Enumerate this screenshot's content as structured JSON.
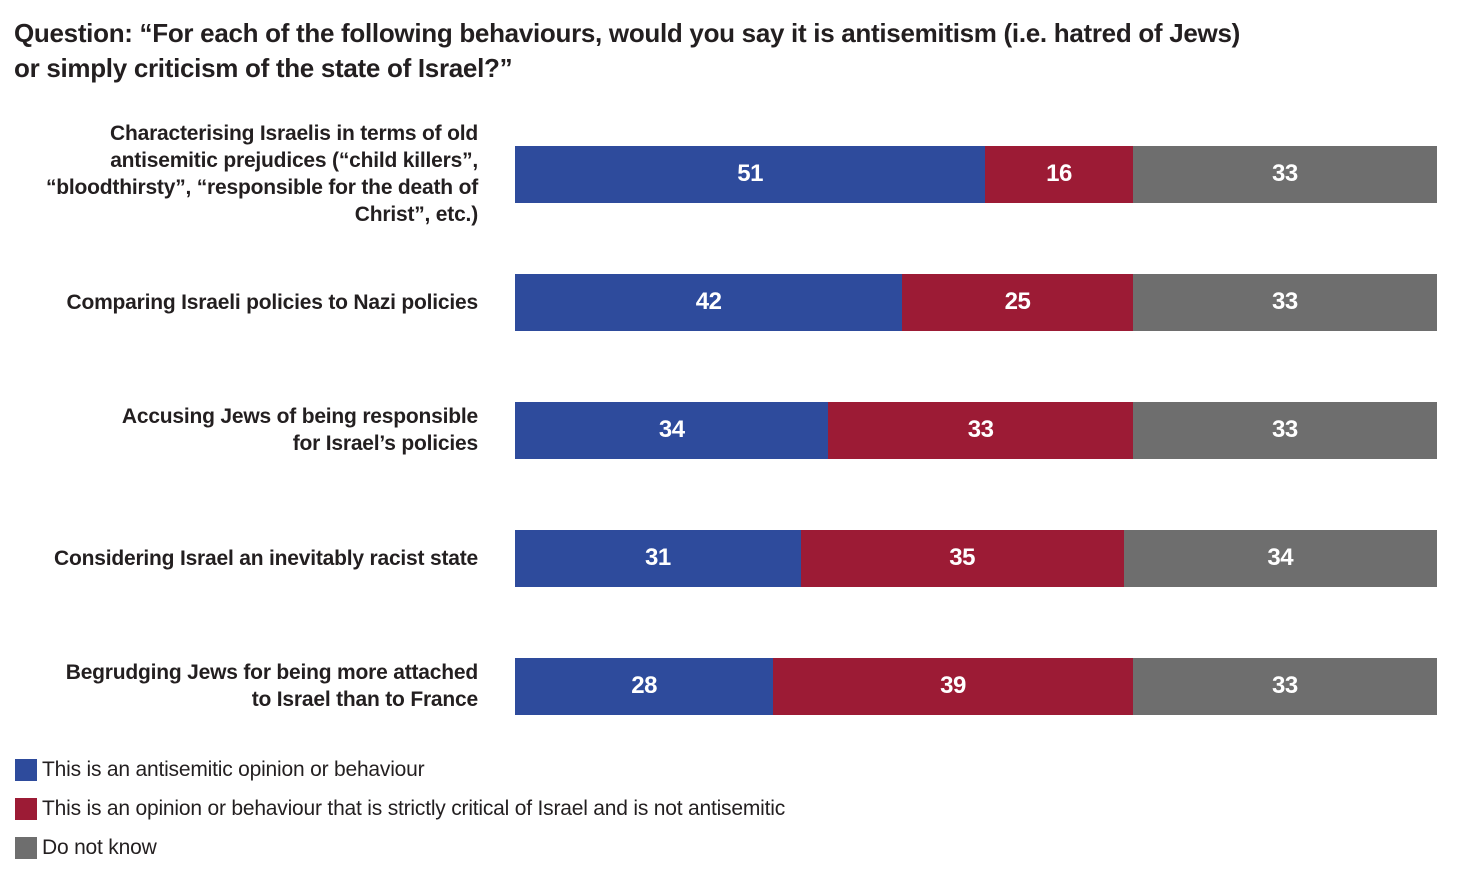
{
  "chart_data": {
    "type": "bar",
    "orientation": "horizontal-stacked",
    "title": "Question: “For each of the following behaviours, would you say it is antisemitism (i.e. hatred of Jews) or simply criticism of the state of Israel?”",
    "title_lines": [
      "Question: “For each of the following behaviours, would you say it is antisemitism (i.e. hatred of Jews)",
      "or simply criticism of the state of Israel?”"
    ],
    "categories": [
      "Characterising Israelis in terms of old antisemitic prejudices (“child killers”, “bloodthirsty”, “responsible for the death of Christ”, etc.)",
      "Comparing Israeli policies to Nazi policies",
      "Accusing Jews of being responsible for Israel’s policies",
      "Considering Israel an inevitably racist state",
      "Begrudging Jews for being more attached to Israel than to France"
    ],
    "category_lines": [
      [
        "Characterising Israelis in terms of old",
        "antisemitic prejudices (“child killers”,",
        "“bloodthirsty”, “responsible for the death of",
        "Christ”, etc.)"
      ],
      [
        "Comparing Israeli policies to Nazi policies"
      ],
      [
        "Accusing Jews of being responsible",
        "for Israel’s policies"
      ],
      [
        "Considering Israel an inevitably racist state"
      ],
      [
        "Begrudging Jews for being more attached",
        "to Israel than to France"
      ]
    ],
    "series": [
      {
        "key": "antisemitic-opinion",
        "name": "This is an antisemitic opinion or behaviour",
        "color": "#2e4b9c",
        "values": [
          51,
          42,
          34,
          31,
          28
        ]
      },
      {
        "key": "critical-of-israel",
        "name": "This is an opinion or behaviour that is strictly critical of Israel and is not antisemitic",
        "color": "#9c1b35",
        "values": [
          16,
          25,
          33,
          35,
          39
        ]
      },
      {
        "key": "do-not-know",
        "name": "Do not know",
        "color": "#6e6e6e",
        "values": [
          33,
          33,
          33,
          34,
          33
        ]
      }
    ],
    "xlim": [
      0,
      100
    ],
    "value_labels": "inside-center-white",
    "legend_position": "bottom-left",
    "grid": false,
    "text_color": "#231f20",
    "background_color": "#ffffff"
  }
}
